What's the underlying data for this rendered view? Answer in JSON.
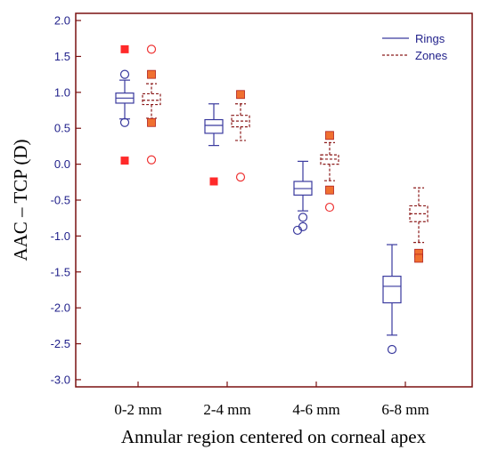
{
  "chart_data": {
    "type": "boxplot",
    "title": "",
    "xlabel": "Annular region centered on corneal apex",
    "ylabel": "AAC – TCP (D)",
    "ylim": [
      -3.1,
      2.1
    ],
    "yticks": [
      "2.0",
      "1.5",
      "1.0",
      "0.5",
      "0.0",
      "-0.5",
      "-1.0",
      "-1.5",
      "-2.0",
      "-2.5",
      "-3.0"
    ],
    "ytick_values": [
      2.0,
      1.5,
      1.0,
      0.5,
      0.0,
      -0.5,
      -1.0,
      -1.5,
      -2.0,
      -2.5,
      -3.0
    ],
    "categories": [
      "0-2 mm",
      "2-4 mm",
      "4-6 mm",
      "6-8 mm"
    ],
    "grid": false,
    "legend_position": "top-right",
    "colors": {
      "rings": "#3a3a9e",
      "zones": "#8b1a1a",
      "frame": "#7a1010",
      "outlier_fill": "#ff2a2a",
      "outlier_fill_alt": "#f07030",
      "outlier_ring": "#ee3333"
    },
    "series": [
      {
        "name": "Rings",
        "style": "solid",
        "boxes": [
          {
            "whisker_low": 0.63,
            "q1": 0.85,
            "median": 0.92,
            "q3": 0.99,
            "whisker_high": 1.17,
            "outliers": [
              {
                "y": 1.25,
                "marker": "circle"
              },
              {
                "y": 0.58,
                "marker": "circle"
              }
            ]
          },
          {
            "whisker_low": 0.26,
            "q1": 0.43,
            "median": 0.54,
            "q3": 0.62,
            "whisker_high": 0.84,
            "outliers": []
          },
          {
            "whisker_low": -0.65,
            "q1": -0.43,
            "median": -0.34,
            "q3": -0.24,
            "whisker_high": 0.04,
            "outliers": [
              {
                "y": -0.74,
                "marker": "circle"
              },
              {
                "y": -0.87,
                "marker": "circle"
              },
              {
                "y": -0.92,
                "marker": "circle",
                "dx": -6
              }
            ]
          },
          {
            "whisker_low": -2.38,
            "q1": -1.93,
            "median": -1.7,
            "q3": -1.56,
            "whisker_high": -1.12,
            "outliers": [
              {
                "y": -2.58,
                "marker": "circle"
              }
            ]
          }
        ]
      },
      {
        "name": "Zones",
        "style": "dashed",
        "boxes": [
          {
            "whisker_low": 0.64,
            "q1": 0.83,
            "median": 0.89,
            "q3": 0.98,
            "whisker_high": 1.12,
            "outliers": [
              {
                "y": 1.6,
                "marker": "ring"
              },
              {
                "y": 1.25,
                "marker": "square-alt"
              },
              {
                "y": 0.58,
                "marker": "square-alt"
              },
              {
                "y": 0.06,
                "marker": "ring"
              }
            ]
          },
          {
            "whisker_low": 0.33,
            "q1": 0.52,
            "median": 0.6,
            "q3": 0.68,
            "whisker_high": 0.84,
            "outliers": [
              {
                "y": 0.97,
                "marker": "square-alt"
              },
              {
                "y": -0.18,
                "marker": "ring"
              }
            ]
          },
          {
            "whisker_low": -0.23,
            "q1": 0.0,
            "median": 0.07,
            "q3": 0.13,
            "whisker_high": 0.3,
            "outliers": [
              {
                "y": 0.4,
                "marker": "square-alt"
              },
              {
                "y": -0.36,
                "marker": "square-alt"
              },
              {
                "y": -0.6,
                "marker": "ring"
              }
            ]
          },
          {
            "whisker_low": -1.09,
            "q1": -0.8,
            "median": -0.69,
            "q3": -0.58,
            "whisker_high": -0.33,
            "outliers": [
              {
                "y": -1.24,
                "marker": "square-alt"
              },
              {
                "y": -1.31,
                "marker": "square-alt"
              }
            ]
          }
        ]
      }
    ],
    "extra_points": [
      {
        "category": 0,
        "y": 1.6,
        "marker": "square",
        "series": "Rings"
      },
      {
        "category": 0,
        "y": 0.05,
        "marker": "square",
        "series": "Rings"
      },
      {
        "category": 1,
        "y": -0.24,
        "marker": "square",
        "series": "Rings"
      }
    ]
  }
}
